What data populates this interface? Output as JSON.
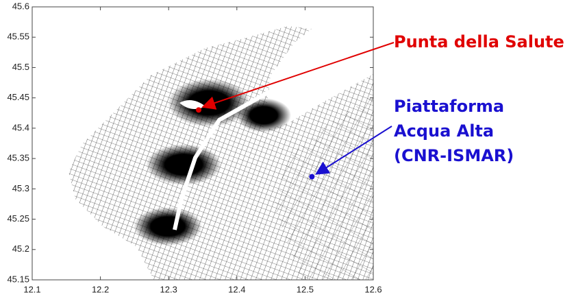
{
  "chart_data": {
    "type": "scatter",
    "xlim": [
      12.1,
      12.6
    ],
    "ylim": [
      45.15,
      45.6
    ],
    "xticks": [
      12.1,
      12.2,
      12.3,
      12.4,
      12.5,
      12.6
    ],
    "yticks": [
      45.15,
      45.2,
      45.25,
      45.3,
      45.35,
      45.4,
      45.45,
      45.5,
      45.55,
      45.6
    ],
    "grid": false,
    "series": [
      {
        "label": [
          "Punta della Salute"
        ],
        "color": "#e00000",
        "x": [
          12.344
        ],
        "values": [
          45.43
        ]
      },
      {
        "label": [
          "Piattaforma",
          "Acqua Alta",
          "(CNR-ISMAR)"
        ],
        "color": "#1a10d0",
        "x": [
          12.51
        ],
        "values": [
          45.32
        ]
      }
    ]
  }
}
